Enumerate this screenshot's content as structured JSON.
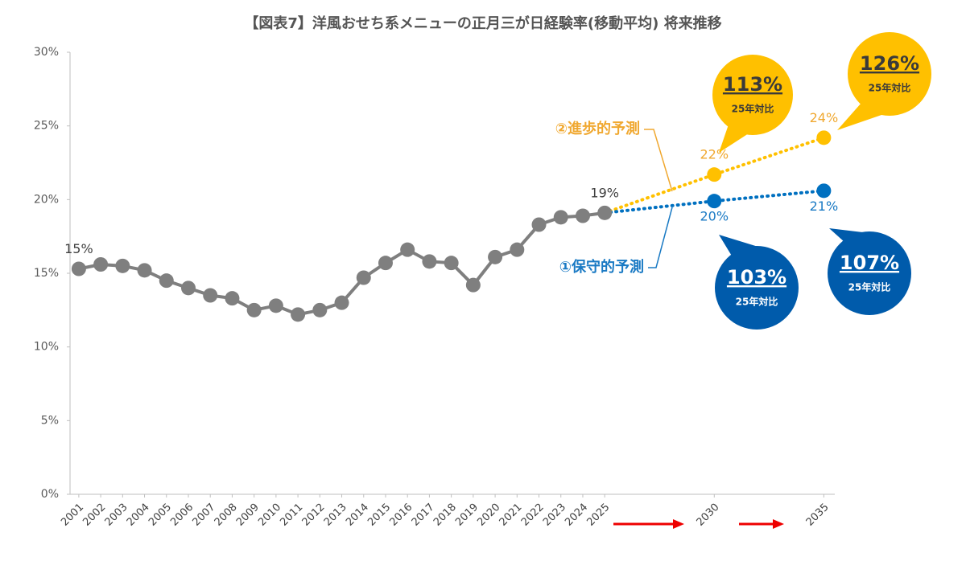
{
  "chart_data": {
    "type": "line",
    "title": "【図表7】洋風おせち系メニューの正月三が日経験率(移動平均) 将来推移",
    "x": [
      2001,
      2002,
      2003,
      2004,
      2005,
      2006,
      2007,
      2008,
      2009,
      2010,
      2011,
      2012,
      2013,
      2014,
      2015,
      2016,
      2017,
      2018,
      2019,
      2020,
      2021,
      2022,
      2023,
      2024,
      2025,
      2030,
      2035
    ],
    "xlim": [
      2000.6,
      2035.5
    ],
    "xticks": [
      2001,
      2002,
      2003,
      2004,
      2005,
      2006,
      2007,
      2008,
      2009,
      2010,
      2011,
      2012,
      2013,
      2014,
      2015,
      2016,
      2017,
      2018,
      2019,
      2020,
      2021,
      2022,
      2023,
      2024,
      2025,
      2030,
      2035
    ],
    "ylim": [
      0,
      30
    ],
    "yticks": [
      {
        "value": 0,
        "label": "0%"
      },
      {
        "value": 5,
        "label": "5%"
      },
      {
        "value": 10,
        "label": "10%"
      },
      {
        "value": 15,
        "label": "15%"
      },
      {
        "value": 20,
        "label": "20%"
      },
      {
        "value": 25,
        "label": "25%"
      },
      {
        "value": 30,
        "label": "30%"
      }
    ],
    "series": [
      {
        "color": "#7f7f7f",
        "label_color": "#404040",
        "values": [
          15.3,
          15.6,
          15.5,
          15.2,
          14.5,
          14.0,
          13.5,
          13.3,
          12.5,
          12.8,
          12.2,
          12.5,
          13.0,
          14.7,
          15.7,
          16.6,
          15.8,
          15.7,
          14.2,
          16.1,
          16.6,
          18.3,
          18.8,
          18.9,
          19.1,
          null,
          null
        ],
        "value_labels": [
          "15%",
          null,
          null,
          null,
          null,
          null,
          null,
          null,
          null,
          null,
          null,
          null,
          null,
          null,
          null,
          null,
          null,
          null,
          null,
          null,
          null,
          null,
          null,
          null,
          "19%",
          null,
          null
        ]
      },
      {
        "name": "②進歩的予測",
        "color": "#ffc000",
        "label_color": "#f0a830",
        "bubble_color": "#ffc000",
        "bubble_text": "#3a3a3a",
        "values": [
          null,
          null,
          null,
          null,
          null,
          null,
          null,
          null,
          null,
          null,
          null,
          null,
          null,
          null,
          null,
          null,
          null,
          null,
          null,
          null,
          null,
          null,
          null,
          null,
          null,
          21.7,
          24.2
        ],
        "value_labels": [
          null,
          null,
          null,
          null,
          null,
          null,
          null,
          null,
          null,
          null,
          null,
          null,
          null,
          null,
          null,
          null,
          null,
          null,
          null,
          null,
          null,
          null,
          null,
          null,
          null,
          "22%",
          "24%"
        ],
        "callouts": [
          {
            "label": "113%",
            "sub": "25年対比"
          },
          {
            "label": "126%",
            "sub": "25年対比"
          }
        ]
      },
      {
        "name": "①保守的予測",
        "color": "#0070c0",
        "label_color": "#1a7ac4",
        "bubble_color": "#005bab",
        "bubble_text": "#ffffff",
        "values": [
          null,
          null,
          null,
          null,
          null,
          null,
          null,
          null,
          null,
          null,
          null,
          null,
          null,
          null,
          null,
          null,
          null,
          null,
          null,
          null,
          null,
          null,
          null,
          null,
          null,
          19.9,
          20.6
        ],
        "value_labels": [
          null,
          null,
          null,
          null,
          null,
          null,
          null,
          null,
          null,
          null,
          null,
          null,
          null,
          null,
          null,
          null,
          null,
          null,
          null,
          null,
          null,
          null,
          null,
          null,
          null,
          "20%",
          "21%"
        ],
        "callouts": [
          {
            "label": "103%",
            "sub": "25年対比"
          },
          {
            "label": "107%",
            "sub": "25年対比"
          }
        ]
      }
    ]
  }
}
